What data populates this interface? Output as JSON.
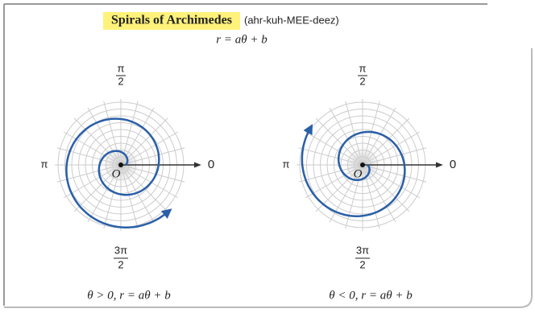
{
  "header": {
    "title": "Spirals of Archimedes",
    "pronunciation": "(ahr-kuh-MEE-deez)",
    "equation": "r = aθ + b"
  },
  "panels": [
    {
      "top_numerator": "π",
      "top_denominator": "2",
      "left": "π",
      "right": "0",
      "bottom_numerator": "3π",
      "bottom_denominator": "2",
      "pole": "O",
      "caption": "θ > 0, r = aθ + b"
    },
    {
      "top_numerator": "π",
      "top_denominator": "2",
      "left": "π",
      "right": "0",
      "bottom_numerator": "3π",
      "bottom_denominator": "2",
      "pole": "O",
      "caption": "θ < 0, r = aθ + b"
    }
  ]
}
